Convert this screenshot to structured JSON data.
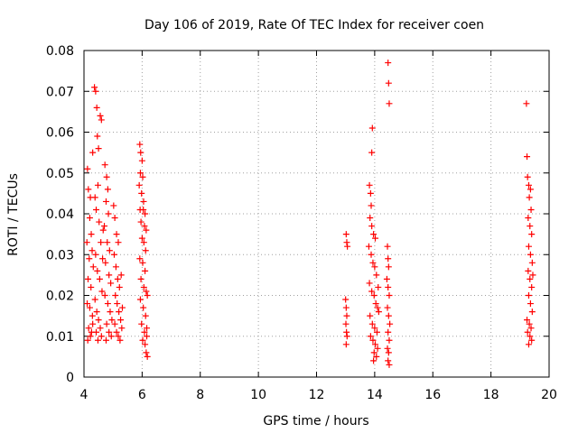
{
  "chart_data": {
    "type": "scatter",
    "title": "Day 106 of 2019, Rate Of TEC Index for receiver coen",
    "xlabel": "GPS time / hours",
    "ylabel": "ROTI / TECUs",
    "xlim": [
      4,
      20
    ],
    "ylim": [
      0,
      0.08
    ],
    "x_ticks": [
      4,
      6,
      8,
      10,
      12,
      14,
      16,
      18,
      20
    ],
    "x_tick_labels": [
      "4",
      "6",
      "8",
      "10",
      "12",
      "14",
      "16",
      "18",
      "20"
    ],
    "y_ticks": [
      0,
      0.01,
      0.02,
      0.03,
      0.04,
      0.05,
      0.06,
      0.07,
      0.08
    ],
    "y_tick_labels": [
      "0",
      "0.01",
      "0.02",
      "0.03",
      "0.04",
      "0.05",
      "0.06",
      "0.07",
      "0.08"
    ],
    "grid": true,
    "marker": "+",
    "marker_color": "#ff0000",
    "series": [
      {
        "name": "ROTI",
        "points": [
          [
            4.12,
            0.051
          ],
          [
            4.15,
            0.046
          ],
          [
            4.22,
            0.044
          ],
          [
            4.3,
            0.055
          ],
          [
            4.2,
            0.039
          ],
          [
            4.25,
            0.035
          ],
          [
            4.1,
            0.033
          ],
          [
            4.18,
            0.029
          ],
          [
            4.28,
            0.031
          ],
          [
            4.14,
            0.024
          ],
          [
            4.24,
            0.022
          ],
          [
            4.32,
            0.027
          ],
          [
            4.11,
            0.018
          ],
          [
            4.2,
            0.017
          ],
          [
            4.29,
            0.015
          ],
          [
            4.16,
            0.012
          ],
          [
            4.26,
            0.011
          ],
          [
            4.13,
            0.009
          ],
          [
            4.22,
            0.01
          ],
          [
            4.3,
            0.013
          ],
          [
            4.36,
            0.071
          ],
          [
            4.4,
            0.07
          ],
          [
            4.44,
            0.066
          ],
          [
            4.46,
            0.059
          ],
          [
            4.5,
            0.056
          ],
          [
            4.56,
            0.064
          ],
          [
            4.6,
            0.063
          ],
          [
            4.38,
            0.044
          ],
          [
            4.42,
            0.041
          ],
          [
            4.48,
            0.047
          ],
          [
            4.52,
            0.038
          ],
          [
            4.58,
            0.033
          ],
          [
            4.4,
            0.03
          ],
          [
            4.46,
            0.026
          ],
          [
            4.54,
            0.024
          ],
          [
            4.62,
            0.021
          ],
          [
            4.38,
            0.019
          ],
          [
            4.44,
            0.016
          ],
          [
            4.5,
            0.014
          ],
          [
            4.56,
            0.012
          ],
          [
            4.6,
            0.01
          ],
          [
            4.48,
            0.009
          ],
          [
            4.42,
            0.011
          ],
          [
            4.64,
            0.029
          ],
          [
            4.66,
            0.036
          ],
          [
            4.72,
            0.052
          ],
          [
            4.78,
            0.049
          ],
          [
            4.82,
            0.046
          ],
          [
            4.76,
            0.043
          ],
          [
            4.84,
            0.04
          ],
          [
            4.7,
            0.037
          ],
          [
            4.8,
            0.033
          ],
          [
            4.88,
            0.031
          ],
          [
            4.74,
            0.028
          ],
          [
            4.86,
            0.025
          ],
          [
            4.92,
            0.023
          ],
          [
            4.72,
            0.02
          ],
          [
            4.82,
            0.018
          ],
          [
            4.9,
            0.016
          ],
          [
            4.78,
            0.013
          ],
          [
            4.86,
            0.011
          ],
          [
            4.94,
            0.01
          ],
          [
            4.76,
            0.009
          ],
          [
            4.96,
            0.014
          ],
          [
            5.02,
            0.042
          ],
          [
            5.06,
            0.039
          ],
          [
            5.12,
            0.035
          ],
          [
            5.18,
            0.033
          ],
          [
            5.04,
            0.03
          ],
          [
            5.1,
            0.027
          ],
          [
            5.16,
            0.024
          ],
          [
            5.22,
            0.022
          ],
          [
            5.08,
            0.02
          ],
          [
            5.14,
            0.018
          ],
          [
            5.2,
            0.016
          ],
          [
            5.26,
            0.014
          ],
          [
            5.06,
            0.013
          ],
          [
            5.12,
            0.011
          ],
          [
            5.18,
            0.01
          ],
          [
            5.24,
            0.009
          ],
          [
            5.3,
            0.012
          ],
          [
            5.32,
            0.017
          ],
          [
            5.28,
            0.025
          ],
          [
            5.92,
            0.057
          ],
          [
            5.95,
            0.055
          ],
          [
            6.0,
            0.053
          ],
          [
            5.94,
            0.05
          ],
          [
            6.02,
            0.049
          ],
          [
            5.9,
            0.047
          ],
          [
            5.98,
            0.045
          ],
          [
            6.05,
            0.043
          ],
          [
            5.93,
            0.041
          ],
          [
            6.04,
            0.041
          ],
          [
            6.1,
            0.04
          ],
          [
            5.96,
            0.038
          ],
          [
            6.08,
            0.037
          ],
          [
            6.14,
            0.036
          ],
          [
            6.0,
            0.034
          ],
          [
            6.06,
            0.033
          ],
          [
            6.12,
            0.031
          ],
          [
            5.92,
            0.029
          ],
          [
            6.02,
            0.028
          ],
          [
            6.1,
            0.026
          ],
          [
            5.96,
            0.024
          ],
          [
            6.06,
            0.022
          ],
          [
            6.14,
            0.021
          ],
          [
            5.94,
            0.019
          ],
          [
            6.04,
            0.017
          ],
          [
            6.12,
            0.015
          ],
          [
            5.98,
            0.013
          ],
          [
            6.08,
            0.011
          ],
          [
            6.16,
            0.01
          ],
          [
            6.02,
            0.009
          ],
          [
            6.1,
            0.008
          ],
          [
            6.14,
            0.006
          ],
          [
            6.18,
            0.005
          ],
          [
            6.16,
            0.012
          ],
          [
            6.18,
            0.02
          ],
          [
            13.02,
            0.035
          ],
          [
            13.04,
            0.033
          ],
          [
            13.06,
            0.032
          ],
          [
            13.0,
            0.019
          ],
          [
            13.02,
            0.017
          ],
          [
            13.04,
            0.015
          ],
          [
            13.01,
            0.013
          ],
          [
            13.03,
            0.011
          ],
          [
            13.05,
            0.01
          ],
          [
            13.02,
            0.008
          ],
          [
            13.82,
            0.047
          ],
          [
            13.86,
            0.045
          ],
          [
            13.88,
            0.042
          ],
          [
            13.9,
            0.055
          ],
          [
            13.92,
            0.061
          ],
          [
            13.84,
            0.039
          ],
          [
            13.9,
            0.037
          ],
          [
            13.96,
            0.035
          ],
          [
            14.02,
            0.034
          ],
          [
            13.8,
            0.032
          ],
          [
            13.88,
            0.03
          ],
          [
            13.94,
            0.028
          ],
          [
            14.0,
            0.027
          ],
          [
            14.06,
            0.025
          ],
          [
            13.82,
            0.023
          ],
          [
            13.9,
            0.021
          ],
          [
            13.98,
            0.02
          ],
          [
            14.04,
            0.018
          ],
          [
            14.1,
            0.017
          ],
          [
            13.84,
            0.015
          ],
          [
            13.92,
            0.013
          ],
          [
            14.0,
            0.012
          ],
          [
            14.08,
            0.011
          ],
          [
            13.86,
            0.01
          ],
          [
            13.94,
            0.009
          ],
          [
            14.02,
            0.008
          ],
          [
            14.1,
            0.007
          ],
          [
            13.98,
            0.006
          ],
          [
            14.06,
            0.005
          ],
          [
            13.96,
            0.004
          ],
          [
            14.12,
            0.022
          ],
          [
            14.14,
            0.016
          ],
          [
            14.46,
            0.077
          ],
          [
            14.48,
            0.072
          ],
          [
            14.5,
            0.067
          ],
          [
            14.44,
            0.032
          ],
          [
            14.46,
            0.029
          ],
          [
            14.48,
            0.027
          ],
          [
            14.42,
            0.024
          ],
          [
            14.46,
            0.022
          ],
          [
            14.5,
            0.02
          ],
          [
            14.44,
            0.017
          ],
          [
            14.48,
            0.015
          ],
          [
            14.52,
            0.013
          ],
          [
            14.46,
            0.011
          ],
          [
            14.5,
            0.009
          ],
          [
            14.44,
            0.007
          ],
          [
            14.48,
            0.006
          ],
          [
            14.46,
            0.004
          ],
          [
            14.5,
            0.003
          ],
          [
            19.22,
            0.067
          ],
          [
            19.24,
            0.054
          ],
          [
            19.26,
            0.049
          ],
          [
            19.3,
            0.047
          ],
          [
            19.36,
            0.046
          ],
          [
            19.32,
            0.044
          ],
          [
            19.38,
            0.041
          ],
          [
            19.28,
            0.039
          ],
          [
            19.34,
            0.037
          ],
          [
            19.4,
            0.035
          ],
          [
            19.3,
            0.032
          ],
          [
            19.36,
            0.03
          ],
          [
            19.42,
            0.028
          ],
          [
            19.28,
            0.026
          ],
          [
            19.34,
            0.024
          ],
          [
            19.4,
            0.022
          ],
          [
            19.3,
            0.02
          ],
          [
            19.36,
            0.018
          ],
          [
            19.42,
            0.016
          ],
          [
            19.24,
            0.014
          ],
          [
            19.32,
            0.013
          ],
          [
            19.38,
            0.012
          ],
          [
            19.26,
            0.011
          ],
          [
            19.34,
            0.01
          ],
          [
            19.4,
            0.009
          ],
          [
            19.3,
            0.008
          ],
          [
            19.44,
            0.025
          ]
        ]
      }
    ]
  }
}
